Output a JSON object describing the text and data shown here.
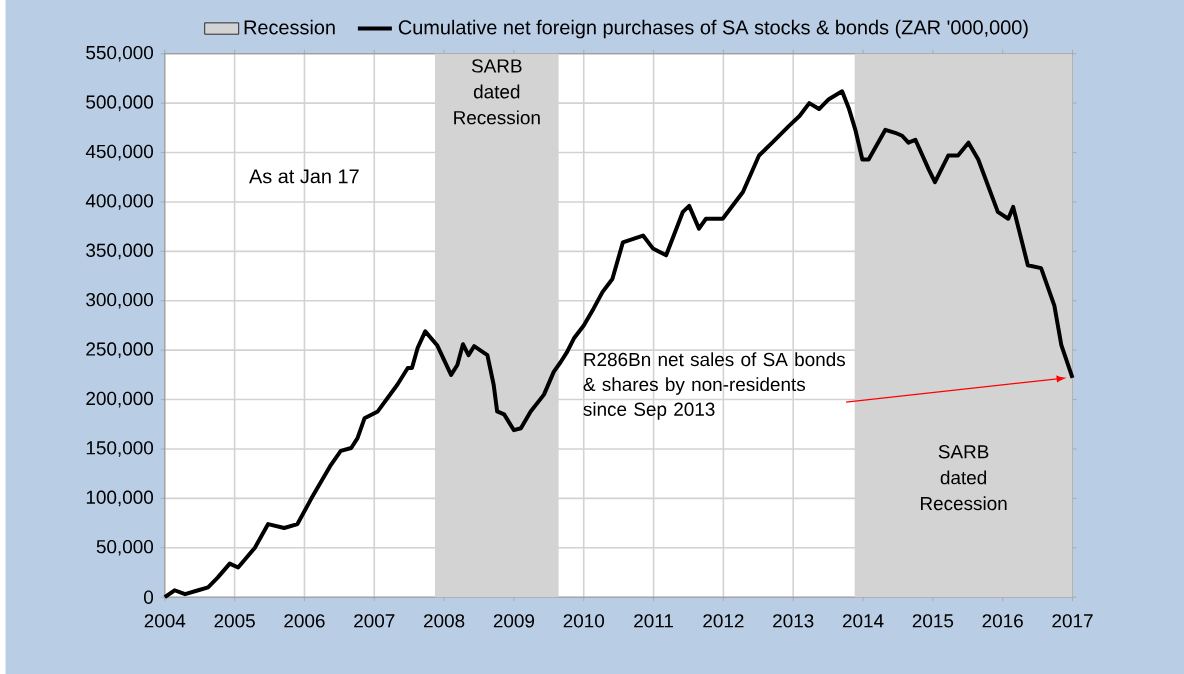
{
  "chart_data": {
    "type": "line",
    "xlim": [
      2004,
      2017
    ],
    "xticks": [
      2004,
      2005,
      2006,
      2007,
      2008,
      2009,
      2010,
      2011,
      2012,
      2013,
      2014,
      2015,
      2016,
      2017
    ],
    "ylim": [
      0,
      550000
    ],
    "yticks": [
      {
        "value": 0,
        "label": "0"
      },
      {
        "value": 50000,
        "label": "50,000"
      },
      {
        "value": 100000,
        "label": "100,000"
      },
      {
        "value": 150000,
        "label": "150,000"
      },
      {
        "value": 200000,
        "label": "200,000"
      },
      {
        "value": 250000,
        "label": "250,000"
      },
      {
        "value": 300000,
        "label": "300,000"
      },
      {
        "value": 350000,
        "label": "350,000"
      },
      {
        "value": 400000,
        "label": "400,000"
      },
      {
        "value": 450000,
        "label": "450,000"
      },
      {
        "value": 500000,
        "label": "500,000"
      },
      {
        "value": 550000,
        "label": "550,000"
      }
    ],
    "grid": true,
    "legend": "top",
    "marker": "none",
    "line_style": "solid",
    "bands": [
      {
        "axis": "x",
        "from": 2007.87,
        "to": 2009.64,
        "label": "Recession",
        "color": "#d3d3d3"
      },
      {
        "axis": "x",
        "from": 2013.88,
        "to": 2017,
        "color": "#d3d3d3"
      }
    ],
    "annotations": [
      "As at Jan 17",
      {
        "text": "R286Bn net sales of SA bonds & shares by non-residents since Sep 2013",
        "x": 2017,
        "y": 222000
      },
      "SARB dated Recession",
      "SARB dated Recession"
    ],
    "series": [
      {
        "name": "Cumulative net foreign purchases of SA stocks & bonds (ZAR '000,000)",
        "color": "#000000",
        "x": [
          2004.0,
          2004.14,
          2004.29,
          2004.48,
          2004.62,
          2004.76,
          2004.93,
          2005.05,
          2005.29,
          2005.48,
          2005.71,
          2005.9,
          2006.1,
          2006.38,
          2006.52,
          2006.67,
          2006.76,
          2006.86,
          2007.05,
          2007.33,
          2007.48,
          2007.54,
          2007.62,
          2007.73,
          2007.9,
          2008.1,
          2008.19,
          2008.27,
          2008.35,
          2008.43,
          2008.62,
          2008.71,
          2008.76,
          2008.86,
          2009.0,
          2009.1,
          2009.24,
          2009.43,
          2009.57,
          2009.67,
          2009.76,
          2009.86,
          2010.0,
          2010.14,
          2010.27,
          2010.41,
          2010.56,
          2010.85,
          2010.99,
          2011.18,
          2011.42,
          2011.51,
          2011.65,
          2011.75,
          2011.99,
          2012.28,
          2012.51,
          2012.7,
          2012.94,
          2013.09,
          2013.23,
          2013.37,
          2013.51,
          2013.7,
          2013.8,
          2013.89,
          2013.99,
          2014.08,
          2014.32,
          2014.46,
          2014.56,
          2014.65,
          2014.75,
          2014.94,
          2015.03,
          2015.22,
          2015.36,
          2015.51,
          2015.65,
          2015.93,
          2016.08,
          2016.15,
          2016.36,
          2016.55,
          2016.74,
          2016.84,
          2017.0
        ],
        "values": [
          0,
          7000,
          3000,
          7000,
          10000,
          20000,
          34000,
          30000,
          50000,
          74000,
          70000,
          74000,
          100000,
          134000,
          148000,
          151000,
          161000,
          181000,
          188000,
          215000,
          232000,
          232000,
          252000,
          269000,
          255000,
          225000,
          235000,
          256000,
          245000,
          254000,
          245000,
          215000,
          188000,
          185000,
          169000,
          171000,
          188000,
          205000,
          228000,
          238000,
          248000,
          262000,
          275000,
          292000,
          309000,
          322000,
          359000,
          366000,
          353000,
          346000,
          390000,
          396000,
          373000,
          383000,
          383000,
          410000,
          447000,
          460000,
          477000,
          487000,
          500000,
          494000,
          504000,
          512000,
          494000,
          473000,
          443000,
          443000,
          473000,
          470000,
          467000,
          460000,
          463000,
          433000,
          420000,
          447000,
          447000,
          460000,
          443000,
          390000,
          383000,
          395000,
          336000,
          333000,
          295000,
          255000,
          222000
        ]
      }
    ]
  }
}
